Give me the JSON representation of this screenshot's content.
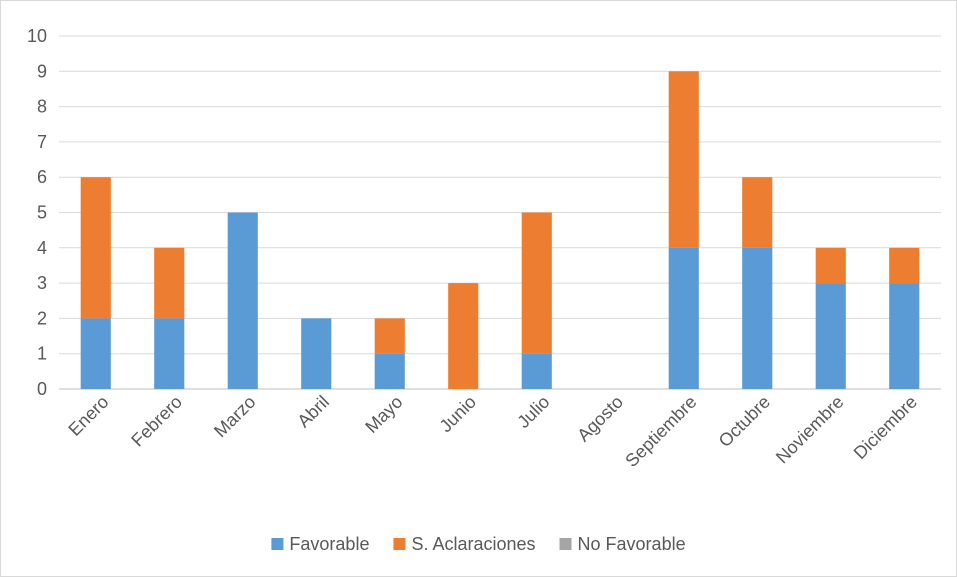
{
  "chart_data": {
    "type": "bar",
    "stacked": true,
    "categories": [
      "Enero",
      "Febrero",
      "Marzo",
      "Abril",
      "Mayo",
      "Junio",
      "Julio",
      "Agosto",
      "Septiembre",
      "Octubre",
      "Noviembre",
      "Diciembre"
    ],
    "series": [
      {
        "name": "Favorable",
        "color": "#5b9bd5",
        "values": [
          2,
          2,
          5,
          2,
          1,
          0,
          1,
          0,
          4,
          4,
          3,
          3
        ]
      },
      {
        "name": "S. Aclaraciones",
        "color": "#ed7d31",
        "values": [
          4,
          2,
          0,
          0,
          1,
          3,
          4,
          0,
          5,
          2,
          1,
          1
        ]
      },
      {
        "name": "No Favorable",
        "color": "#a5a5a5",
        "values": [
          0,
          0,
          0,
          0,
          0,
          0,
          0,
          0,
          0,
          0,
          0,
          0
        ]
      }
    ],
    "y_ticks": [
      "0",
      "1",
      "2",
      "3",
      "4",
      "5",
      "6",
      "7",
      "8",
      "9",
      "10"
    ],
    "ylim": [
      0,
      10
    ],
    "grid": true,
    "legend_position": "bottom"
  }
}
